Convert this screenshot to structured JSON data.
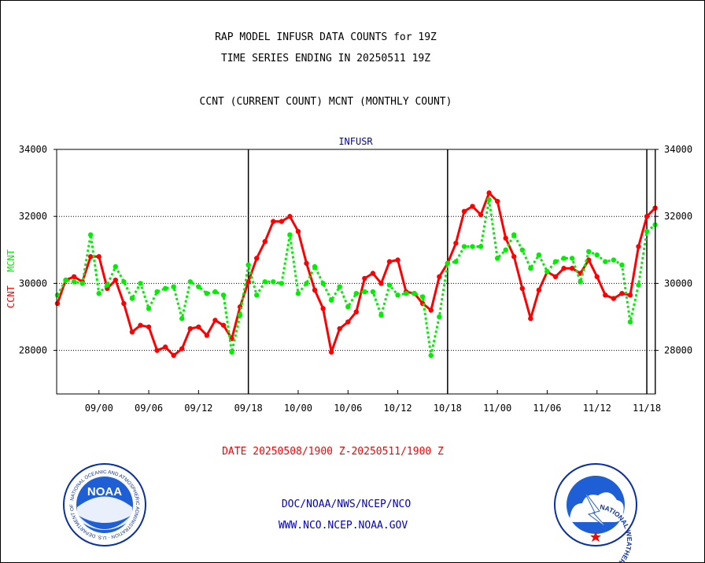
{
  "header": {
    "title_line1": "RAP MODEL INFUSR DATA COUNTS for 19Z",
    "title_line2": "TIME SERIES ENDING IN 20250511 19Z",
    "subtitle": "CCNT (CURRENT COUNT) MCNT (MONTHLY COUNT)"
  },
  "chart_data": {
    "type": "line",
    "title": "INFUSR",
    "ylabel_primary": "CCNT",
    "ylabel_secondary": "MCNT",
    "xlabel": "DATE 20250508/1900 Z-20250511/1900 Z",
    "ylim": [
      26700,
      34000
    ],
    "y_ticks": [
      28000,
      30000,
      32000,
      34000
    ],
    "y_tick_labels": [
      "28000",
      "30000",
      "32000",
      "34000"
    ],
    "grid": "horizontal dotted at 28000, 30000, 32000",
    "x_ticks": [
      {
        "label": "09/00",
        "x": 5
      },
      {
        "label": "09/06",
        "x": 11
      },
      {
        "label": "09/12",
        "x": 17
      },
      {
        "label": "09/18",
        "x": 23
      },
      {
        "label": "10/00",
        "x": 29
      },
      {
        "label": "10/06",
        "x": 35
      },
      {
        "label": "10/12",
        "x": 41
      },
      {
        "label": "10/18",
        "x": 47
      },
      {
        "label": "11/00",
        "x": 53
      },
      {
        "label": "11/06",
        "x": 59
      },
      {
        "label": "11/12",
        "x": 65
      },
      {
        "label": "11/18",
        "x": 71
      }
    ],
    "day_boundaries": [
      23,
      47,
      71
    ],
    "x_range": [
      0,
      72.5
    ],
    "series": [
      {
        "name": "CCNT",
        "color": "#ff0000",
        "style": "solid",
        "values": [
          29400,
          30100,
          30200,
          30050,
          30800,
          30800,
          29850,
          30100,
          29400,
          28550,
          28750,
          28700,
          28000,
          28100,
          27850,
          28050,
          28650,
          28700,
          28450,
          28900,
          28750,
          28350,
          29300,
          30050,
          30750,
          31250,
          31850,
          31850,
          32000,
          31550,
          30600,
          29800,
          29250,
          27950,
          28650,
          28850,
          29150,
          30150,
          30300,
          30000,
          30650,
          30700,
          29750,
          29700,
          29400,
          29200,
          30200,
          30600,
          31200,
          32150,
          32300,
          32050,
          32700,
          32450,
          31350,
          30800,
          29850,
          28950,
          29800,
          30350,
          30200,
          30450,
          30450,
          30300,
          30700,
          30200,
          29650,
          29550,
          29700,
          29650,
          31100,
          32000,
          32250
        ]
      },
      {
        "name": "MCNT",
        "color": "#00ee00",
        "style": "dotted",
        "values": [
          29650,
          30100,
          30050,
          30000,
          31450,
          29700,
          29950,
          30500,
          30050,
          29550,
          30000,
          29250,
          29750,
          29850,
          29900,
          28950,
          30050,
          29900,
          29700,
          29750,
          29650,
          27950,
          29050,
          30550,
          29650,
          30050,
          30050,
          30000,
          31450,
          29700,
          30000,
          30500,
          30000,
          29500,
          29900,
          29300,
          29700,
          29750,
          29750,
          29050,
          29950,
          29650,
          29700,
          29700,
          29600,
          27850,
          29000,
          30600,
          30650,
          31100,
          31100,
          31100,
          32500,
          30750,
          31000,
          31450,
          31000,
          30450,
          30850,
          30350,
          30650,
          30750,
          30750,
          30050,
          30950,
          30850,
          30650,
          30700,
          30550,
          28850,
          29950,
          31550,
          31750
        ]
      }
    ]
  },
  "footer": {
    "credit_line1": "DOC/NOAA/NWS/NCEP/NCO",
    "credit_line2": "WWW.NCO.NCEP.NOAA.GOV",
    "noaa_logo_text": "NOAA",
    "noaa_ring_text": "NATIONAL OCEANIC AND ATMOSPHERIC ADMINISTRATION · U.S. DEPARTMENT OF COMMERCE",
    "nws_ring_text": "NATIONAL WEATHER SERVICE"
  },
  "colors": {
    "title": "#000000",
    "chart_title": "#0000cc",
    "date_label": "#ff0000",
    "credits": "#0000cc",
    "ccnt": "#ff0000",
    "mcnt": "#00ee00"
  }
}
